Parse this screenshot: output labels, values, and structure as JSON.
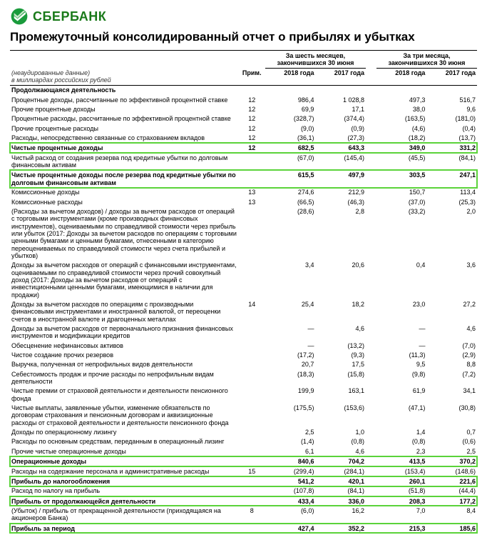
{
  "logo": {
    "text": "СБЕРБАНК",
    "color": "#1a7a1a"
  },
  "title": "Промежуточный консолидированный отчет о прибылях и убытках",
  "note_top1": "(неаудированные данные)",
  "note_top2": "в миллиардах российских рублей",
  "col_headers": {
    "period6": "За шесть месяцев,\nзакончившихся 30 июня",
    "period3": "За три месяца,\nзакончившихся 30 июня",
    "note": "Прим.",
    "y2018": "2018 года",
    "y2017": "2017 года"
  },
  "section1": "Продолжающаяся деятельность",
  "rows": [
    {
      "label": "Процентные доходы, рассчитанные по эффективной процентной ставке",
      "note": "12",
      "a": "986,4",
      "b": "1 028,8",
      "c": "497,3",
      "d": "516,7"
    },
    {
      "label": "Прочие процентные доходы",
      "note": "12",
      "a": "69,9",
      "b": "17,1",
      "c": "38,0",
      "d": "9,6"
    },
    {
      "label": "Процентные расходы, рассчитанные по эффективной процентной ставке",
      "note": "12",
      "a": "(328,7)",
      "b": "(374,4)",
      "c": "(163,5)",
      "d": "(181,0)"
    },
    {
      "label": "Прочие процентные расходы",
      "note": "12",
      "a": "(9,0)",
      "b": "(0,9)",
      "c": "(4,6)",
      "d": "(0,4)"
    },
    {
      "label": "Расходы, непосредственно связанные со страхованием вкладов",
      "note": "12",
      "a": "(36,1)",
      "b": "(27,3)",
      "c": "(18,2)",
      "d": "(13,7)",
      "sumUnder": true
    }
  ],
  "hl1": {
    "label": "Чистые процентные доходы",
    "note": "12",
    "a": "682,5",
    "b": "643,3",
    "c": "349,0",
    "d": "331,2"
  },
  "rows2": [
    {
      "label": "Чистый расход от создания резерва под кредитные убытки по долговым финансовым активам",
      "note": "",
      "a": "(67,0)",
      "b": "(145,4)",
      "c": "(45,5)",
      "d": "(84,1)",
      "sumUnder": true
    }
  ],
  "hl2": {
    "label": "Чистые процентные доходы после резерва под кредитные убытки по долговым финансовым активам",
    "note": "",
    "a": "615,5",
    "b": "497,9",
    "c": "303,5",
    "d": "247,1"
  },
  "rows3": [
    {
      "label": "Комиссионные доходы",
      "note": "13",
      "a": "274,6",
      "b": "212,9",
      "c": "150,7",
      "d": "113,4"
    },
    {
      "label": "Комиссионные расходы",
      "note": "13",
      "a": "(66,5)",
      "b": "(46,3)",
      "c": "(37,0)",
      "d": "(25,3)"
    },
    {
      "label": "(Расходы за вычетом доходов) / доходы за вычетом расходов от операций с торговыми инструментами (кроме производных финансовых инструментов), оцениваемыми по справедливой стоимости через прибыль или убыток (2017: Доходы за вычетом расходов по операциям с торговыми ценными бумагами и ценными бумагами, отнесенными в категорию переоцениваемых по справедливой стоимости через счета прибылей и убытков)",
      "note": "",
      "a": "(28,6)",
      "b": "2,8",
      "c": "(33,2)",
      "d": "2,0"
    },
    {
      "label": "Доходы за вычетом расходов от операций с финансовыми инструментами, оцениваемыми по справедливой стоимости через прочий совокупный доход (2017: Доходы за вычетом расходов от операций с инвестиционными ценными бумагами, имеющимися в наличии для продажи)",
      "note": "",
      "a": "3,4",
      "b": "20,6",
      "c": "0,4",
      "d": "3,6"
    },
    {
      "label": "Доходы за вычетом расходов по операциям с производными финансовыми инструментами и иностранной валютой, от переоценки счетов в иностранной валюте и драгоценных металлах",
      "note": "14",
      "a": "25,4",
      "b": "18,2",
      "c": "23,0",
      "d": "27,2"
    },
    {
      "label": "Доходы за вычетом расходов от первоначального признания финансовых инструментов и модификации кредитов",
      "note": "",
      "a": "—",
      "b": "4,6",
      "c": "—",
      "d": "4,6"
    },
    {
      "label": "Обесценение нефинансовых активов",
      "note": "",
      "a": "—",
      "b": "(13,2)",
      "c": "—",
      "d": "(7,0)"
    },
    {
      "label": "Чистое создание прочих резервов",
      "note": "",
      "a": "(17,2)",
      "b": "(9,3)",
      "c": "(11,3)",
      "d": "(2,9)"
    },
    {
      "label": "Выручка, полученная от непрофильных видов деятельности",
      "note": "",
      "a": "20,7",
      "b": "17,5",
      "c": "9,5",
      "d": "8,8"
    },
    {
      "label": "Себестоимость продаж и прочие расходы по непрофильным видам деятельности",
      "note": "",
      "a": "(18,3)",
      "b": "(15,8)",
      "c": "(9,8)",
      "d": "(7,2)"
    },
    {
      "label": "Чистые премии от страховой деятельности и деятельности пенсионного фонда",
      "note": "",
      "a": "199,9",
      "b": "163,1",
      "c": "61,9",
      "d": "34,1"
    },
    {
      "label": "Чистые выплаты, заявленные убытки, изменение обязательств по договорам страхования и пенсионным договорам и аквизиционные расходы от страховой деятельности и деятельности пенсионного фонда",
      "note": "",
      "a": "(175,5)",
      "b": "(153,6)",
      "c": "(47,1)",
      "d": "(30,8)"
    },
    {
      "label": "Доходы по операционному лизингу",
      "note": "",
      "a": "2,5",
      "b": "1,0",
      "c": "1,4",
      "d": "0,7"
    },
    {
      "label": "Расходы по основным средствам, переданным в операционный лизинг",
      "note": "",
      "a": "(1,4)",
      "b": "(0,8)",
      "c": "(0,8)",
      "d": "(0,6)"
    },
    {
      "label": "Прочие чистые операционные доходы",
      "note": "",
      "a": "6,1",
      "b": "4,6",
      "c": "2,3",
      "d": "2,5",
      "sumUnder": true
    }
  ],
  "hl3": {
    "label": "Операционные доходы",
    "note": "",
    "a": "840,6",
    "b": "704,2",
    "c": "413,5",
    "d": "370,2"
  },
  "rows4": [
    {
      "label": "Расходы на содержание персонала и административные расходы",
      "note": "15",
      "a": "(299,4)",
      "b": "(284,1)",
      "c": "(153,4)",
      "d": "(148,6)",
      "sumUnder": true
    }
  ],
  "hl4": {
    "label": "Прибыль до налогообложения",
    "note": "",
    "a": "541,2",
    "b": "420,1",
    "c": "260,1",
    "d": "221,6"
  },
  "rows5": [
    {
      "label": "Расход по налогу на прибыль",
      "note": "",
      "a": "(107,8)",
      "b": "(84,1)",
      "c": "(51,8)",
      "d": "(44,4)",
      "sumUnder": true
    }
  ],
  "hl5": {
    "label": "Прибыль от продолжающейся деятельности",
    "note": "",
    "a": "433,4",
    "b": "336,0",
    "c": "208,3",
    "d": "177,2"
  },
  "rows6": [
    {
      "label": "(Убыток) / прибыль от прекращенной деятельности (приходящаяся на акционеров Банка)",
      "note": "8",
      "a": "(6,0)",
      "b": "16,2",
      "c": "7,0",
      "d": "8,4",
      "sumUnder": true
    }
  ],
  "hl6": {
    "label": "Прибыль за период",
    "note": "",
    "a": "427,4",
    "b": "352,2",
    "c": "215,3",
    "d": "185,6"
  },
  "highlight_color": "#5bd33a"
}
